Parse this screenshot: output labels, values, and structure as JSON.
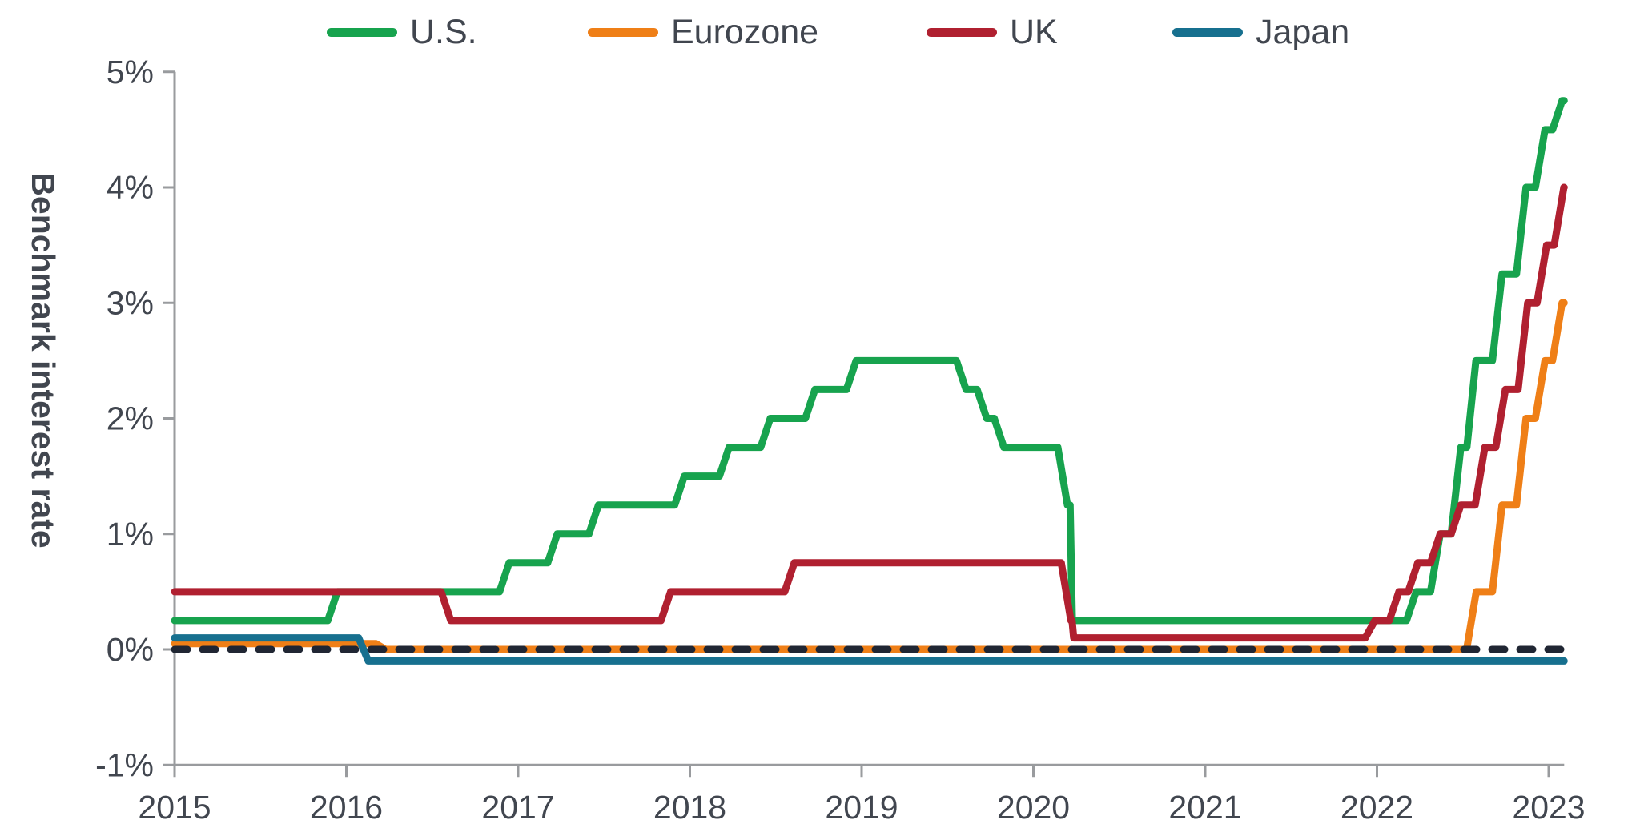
{
  "page": {
    "background": "#ffffff",
    "text_color": "#41464f",
    "axis_color": "#999b9e"
  },
  "legend": {
    "position": "top",
    "items": [
      {
        "label": "U.S.",
        "color": "#17a34e"
      },
      {
        "label": "Eurozone",
        "color": "#ef7f17"
      },
      {
        "label": "UK",
        "color": "#b02030"
      },
      {
        "label": "Japan",
        "color": "#17708f"
      }
    ]
  },
  "chart_data": {
    "type": "line",
    "subtype": "step",
    "title": "",
    "xlabel": "",
    "ylabel": "Benchmark interest rate",
    "xlim": [
      2015,
      2023.09
    ],
    "ylim": [
      -1,
      5
    ],
    "grid": false,
    "legend_position": "top",
    "y_ticks": [
      {
        "label": "5%",
        "value": 5
      },
      {
        "label": "4%",
        "value": 4
      },
      {
        "label": "3%",
        "value": 3
      },
      {
        "label": "2%",
        "value": 2
      },
      {
        "label": "1%",
        "value": 1
      },
      {
        "label": "0%",
        "value": 0
      },
      {
        "label": "-1%",
        "value": -1
      }
    ],
    "x_ticks": [
      {
        "label": "2015",
        "value": 2015
      },
      {
        "label": "2016",
        "value": 2016
      },
      {
        "label": "2017",
        "value": 2017
      },
      {
        "label": "2018",
        "value": 2018
      },
      {
        "label": "2019",
        "value": 2019
      },
      {
        "label": "2020",
        "value": 2020
      },
      {
        "label": "2021",
        "value": 2021
      },
      {
        "label": "2022",
        "value": 2022
      },
      {
        "label": "2023",
        "value": 2023
      }
    ],
    "zero_line": {
      "value": 0,
      "style": "dashed",
      "color": "#202633"
    },
    "series": [
      {
        "name": "U.S.",
        "color": "#17a34e",
        "points": [
          [
            2015.0,
            0.25
          ],
          [
            2015.92,
            0.5
          ],
          [
            2016.92,
            0.75
          ],
          [
            2017.2,
            1.0
          ],
          [
            2017.44,
            1.25
          ],
          [
            2017.94,
            1.5
          ],
          [
            2018.2,
            1.75
          ],
          [
            2018.44,
            2.0
          ],
          [
            2018.7,
            2.25
          ],
          [
            2018.94,
            2.5
          ],
          [
            2019.58,
            2.25
          ],
          [
            2019.7,
            2.0
          ],
          [
            2019.8,
            1.75
          ],
          [
            2020.17,
            1.25
          ],
          [
            2020.22,
            0.25
          ],
          [
            2022.2,
            0.5
          ],
          [
            2022.34,
            1.0
          ],
          [
            2022.46,
            1.75
          ],
          [
            2022.55,
            2.5
          ],
          [
            2022.7,
            3.25
          ],
          [
            2022.84,
            4.0
          ],
          [
            2022.95,
            4.5
          ],
          [
            2023.05,
            4.75
          ]
        ]
      },
      {
        "name": "UK",
        "color": "#b02030",
        "points": [
          [
            2015.0,
            0.5
          ],
          [
            2016.58,
            0.25
          ],
          [
            2017.86,
            0.5
          ],
          [
            2018.58,
            0.75
          ],
          [
            2020.19,
            0.25
          ],
          [
            2020.23,
            0.1
          ],
          [
            2021.96,
            0.25
          ],
          [
            2022.1,
            0.5
          ],
          [
            2022.21,
            0.75
          ],
          [
            2022.34,
            1.0
          ],
          [
            2022.46,
            1.25
          ],
          [
            2022.6,
            1.75
          ],
          [
            2022.72,
            2.25
          ],
          [
            2022.85,
            3.0
          ],
          [
            2022.96,
            3.5
          ],
          [
            2023.06,
            4.0
          ]
        ]
      },
      {
        "name": "Eurozone",
        "color": "#ef7f17",
        "points": [
          [
            2015.0,
            0.05
          ],
          [
            2016.2,
            0.0
          ],
          [
            2022.55,
            0.5
          ],
          [
            2022.7,
            1.25
          ],
          [
            2022.84,
            2.0
          ],
          [
            2022.95,
            2.5
          ],
          [
            2023.05,
            3.0
          ]
        ]
      },
      {
        "name": "Japan",
        "color": "#17708f",
        "points": [
          [
            2015.0,
            0.1
          ],
          [
            2016.1,
            -0.1
          ]
        ]
      }
    ]
  }
}
